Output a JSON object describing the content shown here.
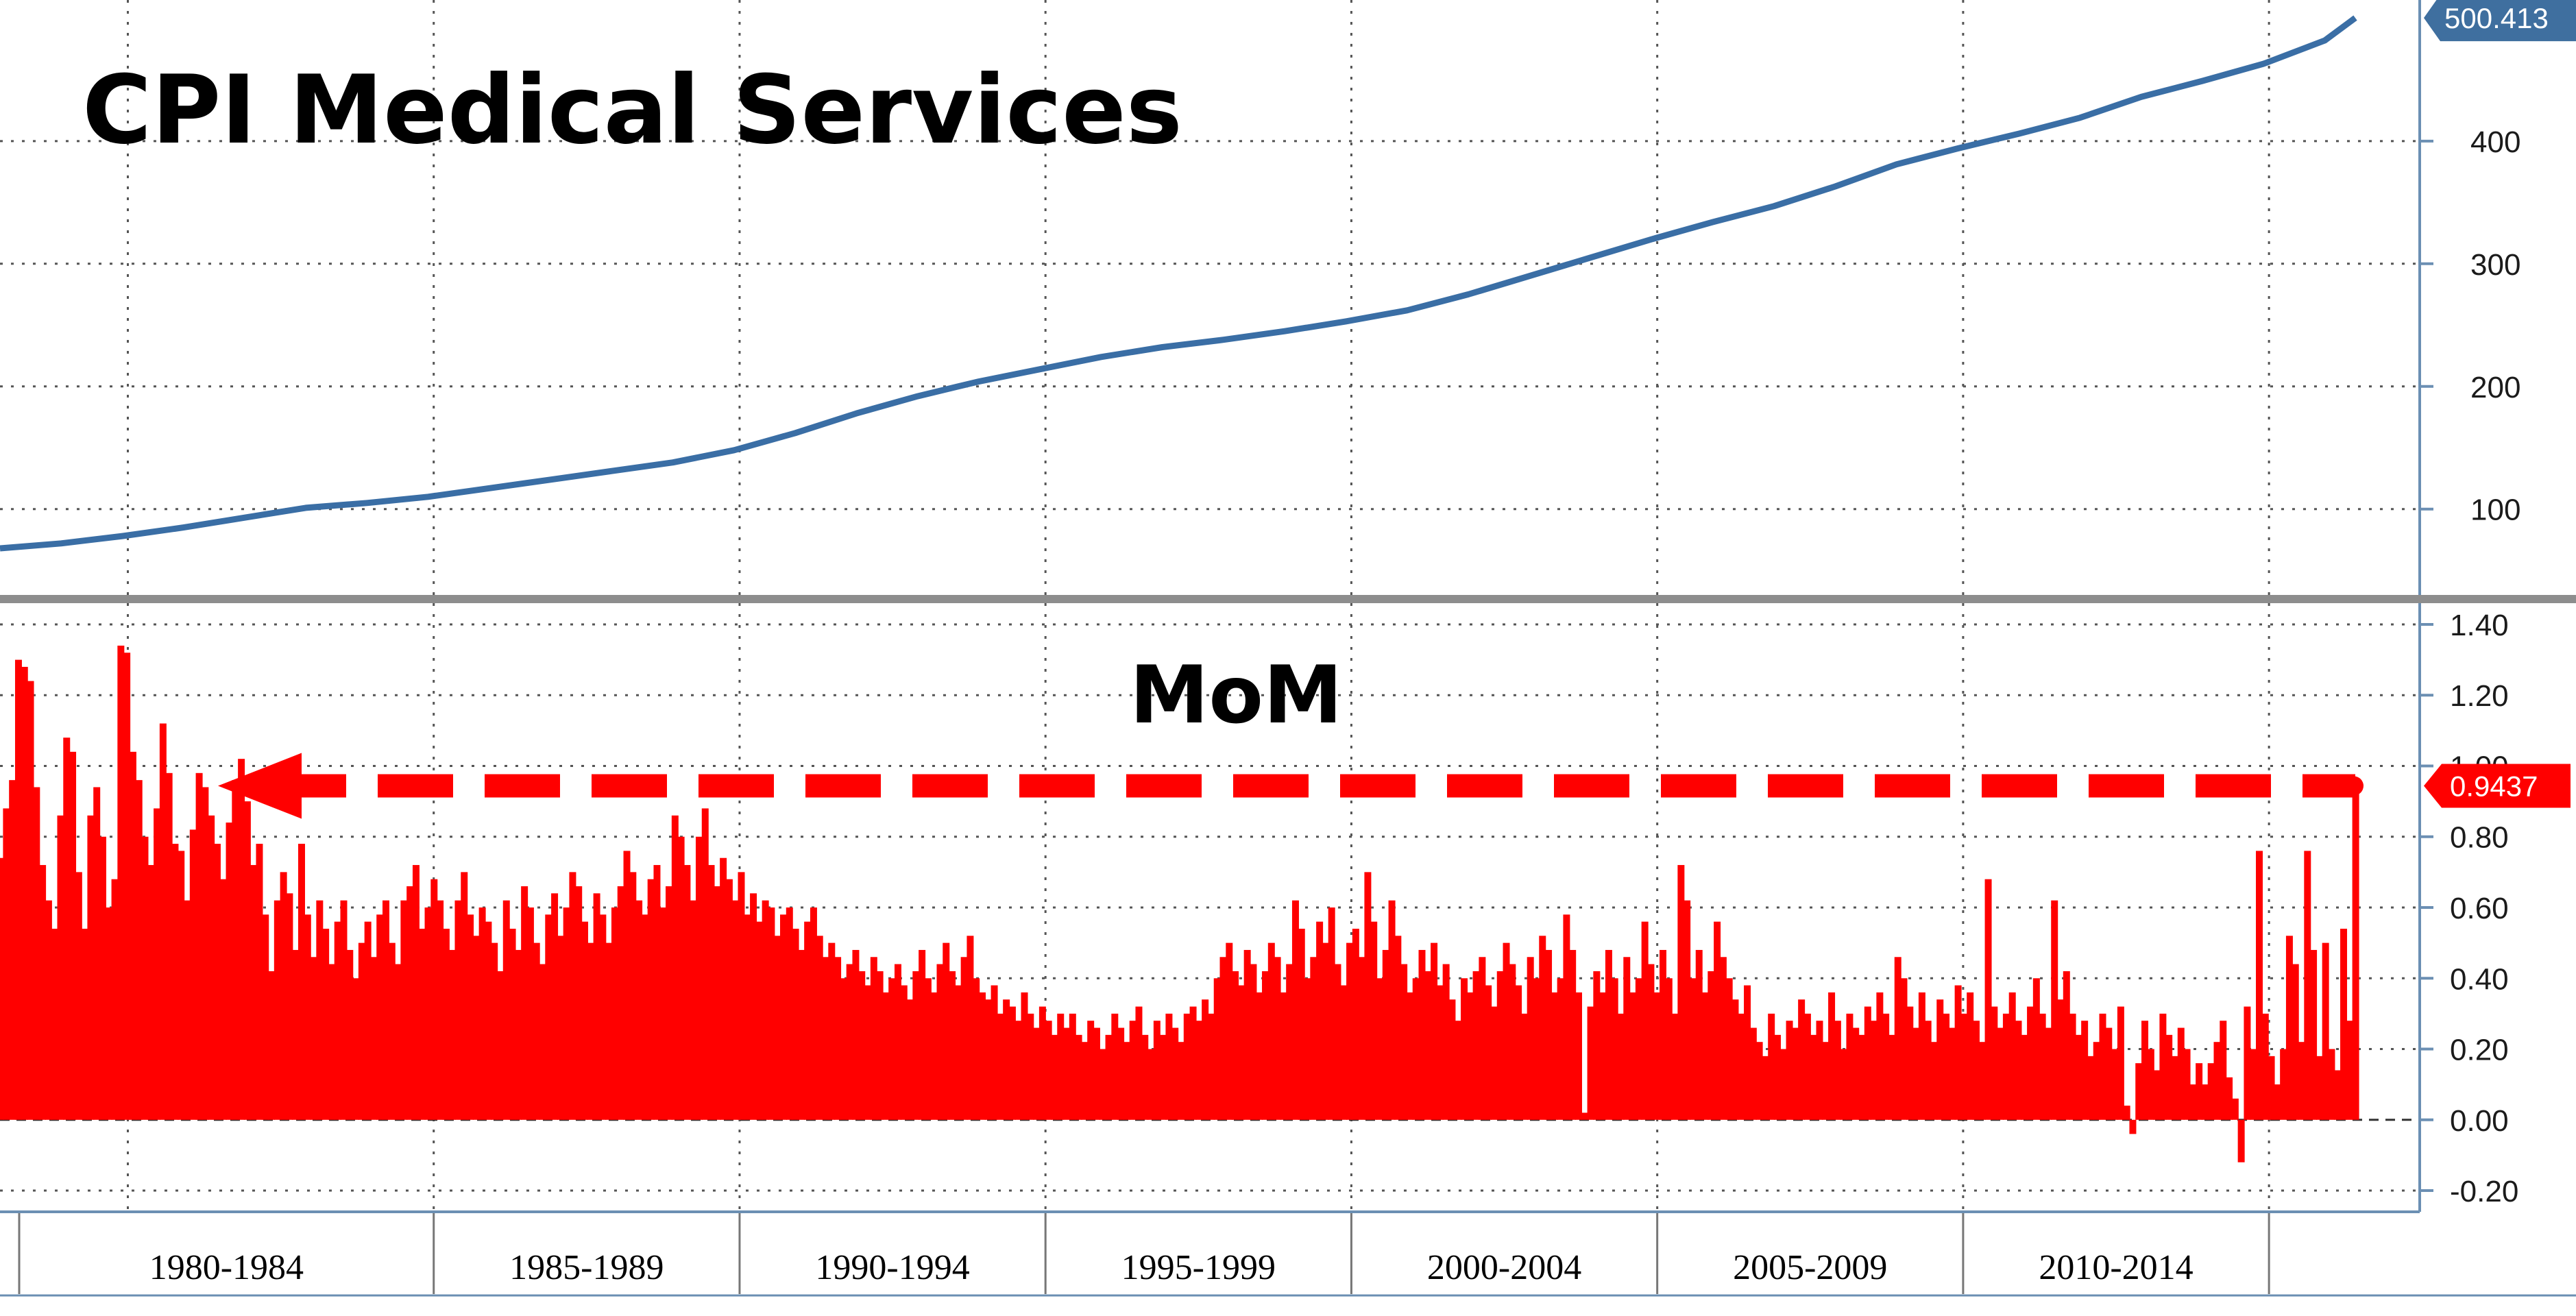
{
  "chart_data": [
    {
      "type": "line",
      "title": "CPI Medical Services",
      "ylim": [
        30,
        515
      ],
      "yticks": [
        100,
        200,
        300,
        400
      ],
      "grid": true,
      "last_value_label": "500.413",
      "colors": {
        "line": "#3a6ea5",
        "axis": "#6b8fb3"
      },
      "series": [
        {
          "x": [
            1978.0,
            1979.0,
            1980.0,
            1981.0,
            1982.0,
            1983.0,
            1984.0,
            1985.0,
            1986.0,
            1987.0,
            1988.0,
            1989.0,
            1990.0,
            1991.0,
            1992.0,
            1993.0,
            1994.0,
            1995.0,
            1996.0,
            1997.0,
            1998.0,
            1999.0,
            2000.0,
            2001.0,
            2002.0,
            2003.0,
            2004.0,
            2005.0,
            2006.0,
            2007.0,
            2008.0,
            2009.0,
            2010.0,
            2011.0,
            2012.0,
            2013.0,
            2014.0,
            2015.0,
            2016.0,
            2016.5
          ],
          "values": [
            68,
            72,
            78,
            85,
            93,
            101,
            105,
            110,
            117,
            124,
            131,
            138,
            148,
            162,
            178,
            192,
            204,
            214,
            224,
            232,
            238,
            245,
            253,
            262,
            275,
            290,
            305,
            320,
            334,
            347,
            363,
            381,
            394,
            406,
            419,
            436,
            449,
            463,
            482,
            500.413
          ]
        }
      ]
    },
    {
      "type": "bar",
      "subtitle": "MoM",
      "ylim": [
        -0.26,
        1.46
      ],
      "yticks": [
        -0.2,
        0.0,
        0.2,
        0.4,
        0.6,
        0.8,
        1.0,
        1.2,
        1.4
      ],
      "ytick_labels": [
        "-0.20",
        "0.00",
        "0.20",
        "0.40",
        "0.60",
        "0.80",
        "1.00",
        "1.20",
        "1.40"
      ],
      "reference_value": 0.9437,
      "reference_label": "0.9437",
      "colors": {
        "bars": "#ff0000",
        "reference": "#ff0000"
      },
      "x_range": [
        1978.0,
        2016.5
      ],
      "values": [
        0.74,
        0.88,
        0.96,
        1.3,
        1.28,
        1.24,
        0.94,
        0.72,
        0.62,
        0.54,
        0.86,
        1.08,
        1.04,
        0.7,
        0.54,
        0.86,
        0.94,
        0.8,
        0.6,
        0.68,
        1.34,
        1.32,
        1.04,
        0.96,
        0.8,
        0.72,
        0.88,
        1.12,
        0.98,
        0.78,
        0.76,
        0.62,
        0.82,
        0.98,
        0.94,
        0.86,
        0.78,
        0.68,
        0.84,
        0.96,
        1.02,
        0.9,
        0.72,
        0.78,
        0.58,
        0.42,
        0.62,
        0.7,
        0.64,
        0.48,
        0.78,
        0.58,
        0.46,
        0.62,
        0.54,
        0.44,
        0.56,
        0.62,
        0.48,
        0.4,
        0.5,
        0.56,
        0.46,
        0.58,
        0.62,
        0.5,
        0.44,
        0.62,
        0.66,
        0.72,
        0.54,
        0.6,
        0.68,
        0.62,
        0.54,
        0.48,
        0.62,
        0.7,
        0.58,
        0.52,
        0.6,
        0.56,
        0.5,
        0.42,
        0.62,
        0.54,
        0.48,
        0.66,
        0.6,
        0.5,
        0.44,
        0.58,
        0.64,
        0.52,
        0.6,
        0.7,
        0.66,
        0.56,
        0.5,
        0.64,
        0.58,
        0.5,
        0.6,
        0.66,
        0.76,
        0.7,
        0.62,
        0.58,
        0.68,
        0.72,
        0.6,
        0.66,
        0.86,
        0.8,
        0.72,
        0.62,
        0.8,
        0.88,
        0.72,
        0.66,
        0.74,
        0.68,
        0.62,
        0.7,
        0.58,
        0.64,
        0.56,
        0.62,
        0.6,
        0.52,
        0.58,
        0.6,
        0.54,
        0.48,
        0.56,
        0.6,
        0.52,
        0.46,
        0.5,
        0.46,
        0.4,
        0.44,
        0.48,
        0.42,
        0.38,
        0.46,
        0.42,
        0.36,
        0.4,
        0.44,
        0.38,
        0.34,
        0.42,
        0.48,
        0.4,
        0.36,
        0.44,
        0.5,
        0.42,
        0.38,
        0.46,
        0.52,
        0.4,
        0.36,
        0.34,
        0.38,
        0.3,
        0.34,
        0.32,
        0.28,
        0.36,
        0.3,
        0.26,
        0.32,
        0.28,
        0.24,
        0.3,
        0.26,
        0.3,
        0.24,
        0.22,
        0.28,
        0.26,
        0.2,
        0.24,
        0.3,
        0.26,
        0.22,
        0.28,
        0.32,
        0.24,
        0.2,
        0.28,
        0.24,
        0.3,
        0.26,
        0.22,
        0.3,
        0.32,
        0.28,
        0.34,
        0.3,
        0.4,
        0.46,
        0.5,
        0.42,
        0.38,
        0.48,
        0.44,
        0.36,
        0.42,
        0.5,
        0.46,
        0.36,
        0.44,
        0.62,
        0.54,
        0.4,
        0.46,
        0.56,
        0.5,
        0.6,
        0.44,
        0.38,
        0.5,
        0.54,
        0.46,
        0.7,
        0.56,
        0.4,
        0.48,
        0.62,
        0.52,
        0.44,
        0.36,
        0.4,
        0.48,
        0.42,
        0.5,
        0.38,
        0.44,
        0.34,
        0.28,
        0.4,
        0.36,
        0.42,
        0.46,
        0.38,
        0.32,
        0.42,
        0.5,
        0.44,
        0.38,
        0.3,
        0.46,
        0.4,
        0.52,
        0.48,
        0.36,
        0.4,
        0.58,
        0.48,
        0.36,
        0.02,
        0.32,
        0.42,
        0.36,
        0.48,
        0.4,
        0.3,
        0.46,
        0.36,
        0.4,
        0.56,
        0.44,
        0.36,
        0.48,
        0.4,
        0.3,
        0.72,
        0.62,
        0.4,
        0.48,
        0.36,
        0.42,
        0.56,
        0.46,
        0.4,
        0.34,
        0.3,
        0.38,
        0.26,
        0.22,
        0.18,
        0.3,
        0.24,
        0.2,
        0.28,
        0.26,
        0.34,
        0.3,
        0.24,
        0.28,
        0.22,
        0.36,
        0.28,
        0.2,
        0.3,
        0.26,
        0.24,
        0.32,
        0.28,
        0.36,
        0.3,
        0.24,
        0.46,
        0.4,
        0.32,
        0.26,
        0.36,
        0.28,
        0.22,
        0.34,
        0.3,
        0.26,
        0.38,
        0.3,
        0.36,
        0.28,
        0.22,
        0.68,
        0.32,
        0.26,
        0.3,
        0.36,
        0.28,
        0.24,
        0.32,
        0.4,
        0.3,
        0.26,
        0.62,
        0.34,
        0.42,
        0.3,
        0.24,
        0.28,
        0.18,
        0.22,
        0.3,
        0.26,
        0.2,
        0.32,
        0.04,
        -0.04,
        0.16,
        0.28,
        0.2,
        0.14,
        0.3,
        0.24,
        0.18,
        0.26,
        0.2,
        0.1,
        0.16,
        0.1,
        0.16,
        0.22,
        0.28,
        0.12,
        0.06,
        -0.12,
        0.32,
        0.2,
        0.76,
        0.3,
        0.18,
        0.1,
        0.2,
        0.52,
        0.44,
        0.22,
        0.76,
        0.48,
        0.18,
        0.5,
        0.2,
        0.14,
        0.54,
        0.28,
        0.9437
      ]
    }
  ],
  "x_axis": {
    "period_labels": [
      "1980-1984",
      "1985-1989",
      "1990-1994",
      "1995-1999",
      "2000-2004",
      "2005-2009",
      "2010-2014"
    ],
    "period_starts": [
      1980,
      1985,
      1990,
      1995,
      2000,
      2005,
      2010
    ]
  }
}
